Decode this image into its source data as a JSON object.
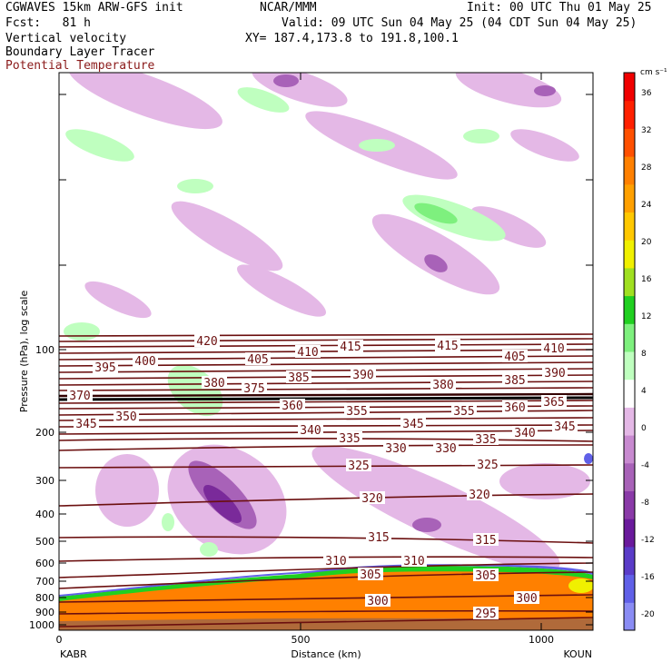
{
  "header": {
    "model": "CGWAVES 15km ARW-GFS init",
    "org": "NCAR/MMM",
    "init": "Init: 00 UTC Thu 01 May 25",
    "fcst": "Fcst:   81 h",
    "valid": "Valid: 09 UTC Sun 04 May 25 (04 CDT Sun 04 May 25)",
    "fields": [
      "Vertical velocity",
      "Boundary Layer Tracer",
      "Potential Temperature"
    ],
    "xy": "XY= 187.4,173.8 to 191.8,100.1"
  },
  "colorbar": {
    "units": "cm s⁻¹",
    "levels": [
      "-20",
      "-16",
      "-12",
      "-8",
      "-4",
      "0",
      "4",
      "8",
      "12",
      "16",
      "20",
      "24",
      "28",
      "32",
      "36"
    ],
    "colors": [
      "#8a8cf4",
      "#6060e8",
      "#5a3cc8",
      "#6a1a9c",
      "#8a3aa8",
      "#a862b8",
      "#c88ad0",
      "#e4b8e6",
      "#ffffff",
      "#bfffbf",
      "#7ef07e",
      "#20d020",
      "#a0e020",
      "#f0f000",
      "#ffc800",
      "#ffa000",
      "#ff8000",
      "#ff5000",
      "#ff2000",
      "#f00000"
    ]
  },
  "axes": {
    "ylabel": "Pressure (hPa), log scale",
    "xlabel": "Distance (km)",
    "left_station": "KABR",
    "right_station": "KOUN"
  },
  "chart_data": {
    "type": "contour",
    "x": {
      "label": "Distance (km)",
      "range": [
        0,
        1110
      ],
      "ticks": [
        "0",
        "500",
        "1000"
      ]
    },
    "y": {
      "label": "Pressure (hPa), log scale",
      "scale": "log",
      "ticks": [
        "100",
        "200",
        "300",
        "400",
        "500",
        "600",
        "700",
        "800",
        "900",
        "1000"
      ]
    },
    "theta_contour_labels_K": [
      "295",
      "300",
      "305",
      "310",
      "315",
      "320",
      "325",
      "330",
      "335",
      "340",
      "345",
      "350",
      "355",
      "360",
      "365",
      "370",
      "375",
      "380",
      "385",
      "390",
      "395",
      "400",
      "405",
      "410",
      "415",
      "420"
    ],
    "fields": [
      "Vertical velocity",
      "Boundary Layer Tracer",
      "Potential Temperature"
    ]
  }
}
